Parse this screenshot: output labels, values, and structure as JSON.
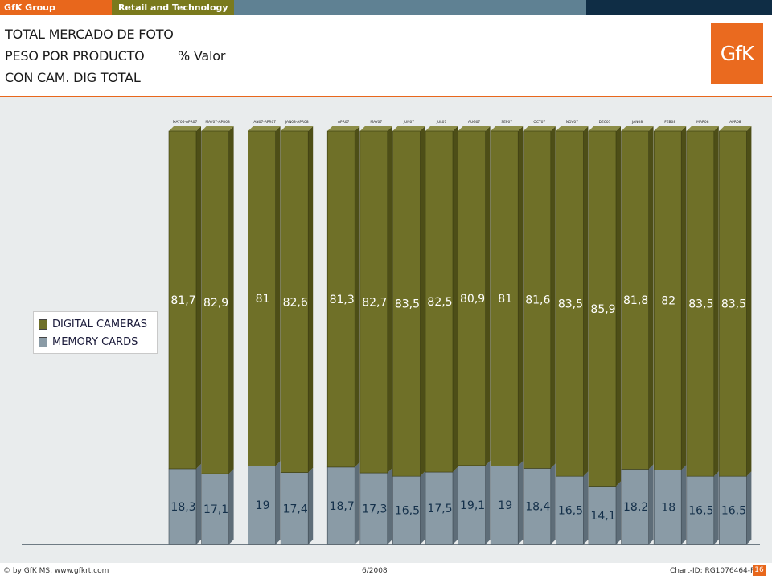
{
  "header": {
    "brand": "GfK Group",
    "sector": "Retail and Technology",
    "title_lines": [
      "TOTAL MERCADO DE FOTO",
      "PESO POR PRODUCTO",
      "CON CAM. DIG TOTAL"
    ],
    "unit": "% Valor",
    "logo_text": "GfK"
  },
  "colors": {
    "digital_cameras": "#6f7028",
    "memory_cards": "#8a9ba6",
    "background": "#e9eced",
    "accent": "#e8671c"
  },
  "footer": {
    "copyright": "© by GfK MS, www.gfkrt.com",
    "date": "6/2008",
    "chart_id": "Chart-ID: RG1076464-P",
    "page": "16"
  },
  "chart_data": {
    "type": "bar",
    "stacked": true,
    "categories": [
      "MAY06-APR07",
      "MAY07-APR08",
      "JAN07-APR07",
      "JAN08-APR08",
      "APR07",
      "MAY07",
      "JUN07",
      "JUL07",
      "AUG07",
      "SEP07",
      "OCT07",
      "NOV07",
      "DEC07",
      "JAN08",
      "FEB08",
      "MAR08",
      "APR08"
    ],
    "groups": [
      [
        0,
        1
      ],
      [
        2,
        3
      ],
      [
        4,
        5,
        6,
        7,
        8,
        9,
        10,
        11,
        12,
        13,
        14,
        15,
        16
      ]
    ],
    "series": [
      {
        "name": "MEMORY CARDS",
        "values": [
          18.3,
          17.1,
          19,
          17.4,
          18.7,
          17.3,
          16.5,
          17.5,
          19.1,
          19,
          18.4,
          16.5,
          14.1,
          18.2,
          18,
          16.5,
          16.5
        ]
      },
      {
        "name": "DIGITAL CAMERAS",
        "values": [
          81.7,
          82.9,
          81,
          82.6,
          81.3,
          82.7,
          83.5,
          82.5,
          80.9,
          81,
          81.6,
          83.5,
          85.9,
          81.8,
          82,
          83.5,
          83.5
        ]
      }
    ],
    "labels": {
      "MEMORY CARDS": [
        "18,3",
        "17,1",
        "19",
        "17,4",
        "18,7",
        "17,3",
        "16,5",
        "17,5",
        "19,1",
        "19",
        "18,4",
        "16,5",
        "14,1",
        "18,2",
        "18",
        "16,5",
        "16,5"
      ],
      "DIGITAL CAMERAS": [
        "81,7",
        "82,9",
        "81",
        "82,6",
        "81,3",
        "82,7",
        "83,5",
        "82,5",
        "80,9",
        "81",
        "81,6",
        "83,5",
        "85,9",
        "81,8",
        "82",
        "83,5",
        "83,5"
      ]
    },
    "ylim": [
      0,
      100
    ],
    "legend": {
      "position": "left",
      "entries": [
        "DIGITAL CAMERAS",
        "MEMORY CARDS"
      ]
    },
    "grid": false
  }
}
